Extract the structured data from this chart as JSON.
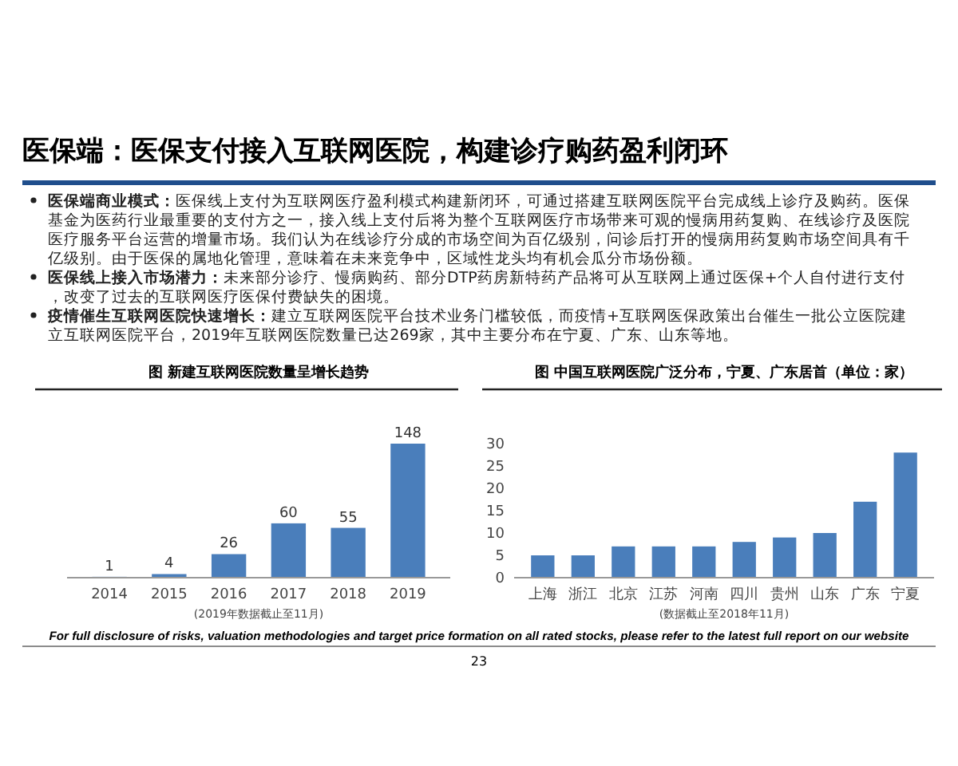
{
  "chart_data": [
    {
      "type": "other",
      "title": "医保端：医保支付接入互联网医院，构建诊疗购药盈利闭环",
      "annotations": [
        "医保端商业模式：医保线上支付为互联网医疗盈利模式构建新闭环，可通过搭建互联网医院平台完成线上诊疗及购药。医保基金为医药行业最重要的支付方之一，接入线上支付后将为整个互联网医疗市场带来可观的慢病用药复购、在线诊疗及医院医疗服务平台运营的增量市场。我们认为在线诊疗分成的市场空间为百亿级别，问诊后打开的慢病用药复购市场空间具有千亿级别。由于医保的属地化管理，意味着在未来竞争中，区域性龙头均有机会瓜分市场份额。",
        "医保线上接入市场潜力：未来部分诊疗、慢病购药、部分DTP药房新特药产品将可从互联网上通过医保+个人自付进行支付，改变了过去的互联网医疗医保付费缺失的困境。",
        "疫情催生互联网医院快速增长：建立互联网医院平台技术业务门槛较低，而疫情+互联网医保政策出台催生一批公立医院建立互联网医院平台，2019年互联网医院数量已达269家，其中主要分布在宁夏、广东、山东等地。",
        "For full disclosure of risks, valuation methodologies and target price formation on all rated stocks, please refer to the latest full report on our website",
        "23"
      ]
    },
    {
      "type": "bar",
      "title": "图 新建互联网医院数量呈增长趋势",
      "categories": [
        "2014",
        "2015",
        "2016",
        "2017",
        "2018",
        "2019"
      ],
      "values": [
        1,
        4,
        26,
        60,
        55,
        148
      ],
      "color": "#4a7ebb",
      "data_labels": true,
      "tick_labels": "x",
      "annotations": [
        "(2019年数据截止至11月)"
      ]
    },
    {
      "type": "bar",
      "title": "图 中国互联网医院广泛分布，宁夏、广东居首（单位：家）",
      "categories": [
        "上海",
        "浙江",
        "北京",
        "江苏",
        "河南",
        "四川",
        "贵州",
        "山东",
        "广东",
        "宁夏"
      ],
      "values": [
        5,
        5,
        7,
        7,
        7,
        8,
        9,
        10,
        17,
        28
      ],
      "color": "#4a7ebb",
      "ylim": [
        0,
        30
      ],
      "yticks": [
        0,
        5,
        10,
        15,
        20,
        25,
        30
      ],
      "annotations": [
        "(数据截止至2018年11月)"
      ]
    }
  ]
}
